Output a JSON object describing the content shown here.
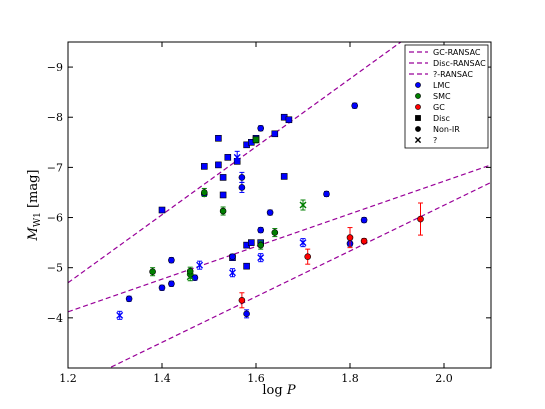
{
  "chart_data": {
    "type": "scatter",
    "xlabel_main": "log",
    "xlabel_var": "P",
    "ylabel_main": "M",
    "ylabel_sub": "W1",
    "ylabel_unit": "[mag]",
    "xlim": [
      1.2,
      2.1
    ],
    "ylim": [
      -3,
      -9.5
    ],
    "y_inverted": true,
    "grid": false,
    "legend_position": "top-right",
    "xticks": [
      {
        "value": 1.2,
        "label": "1.2"
      },
      {
        "value": 1.4,
        "label": "1.4"
      },
      {
        "value": 1.6,
        "label": "1.6"
      },
      {
        "value": 1.8,
        "label": "1.8"
      },
      {
        "value": 2.0,
        "label": "2.0"
      }
    ],
    "yticks": [
      {
        "value": -4,
        "label": "−4"
      },
      {
        "value": -5,
        "label": "−5"
      },
      {
        "value": -6,
        "label": "−6"
      },
      {
        "value": -7,
        "label": "−7"
      },
      {
        "value": -8,
        "label": "−8"
      },
      {
        "value": -9,
        "label": "−9"
      }
    ],
    "fits": [
      {
        "name": "GC-RANSAC",
        "x": [
          1.2,
          2.1
        ],
        "y": [
          -4.7,
          -10.8
        ]
      },
      {
        "name": "Disc-RANSAC",
        "x": [
          1.2,
          2.1
        ],
        "y": [
          -4.12,
          -7.05
        ]
      },
      {
        "name": "?-RANSAC",
        "x": [
          1.2,
          2.1
        ],
        "y": [
          -2.6,
          -6.7
        ]
      }
    ],
    "legend": [
      {
        "label": "GC-RANSAC",
        "kind": "line"
      },
      {
        "label": "Disc-RANSAC",
        "kind": "line"
      },
      {
        "label": "?-RANSAC",
        "kind": "line"
      },
      {
        "label": "LMC",
        "kind": "dot",
        "color": "#0000ff"
      },
      {
        "label": "SMC",
        "kind": "dot",
        "color": "#007f00"
      },
      {
        "label": "GC",
        "kind": "dot",
        "color": "#ff0000"
      },
      {
        "label": "Disc",
        "kind": "square",
        "color": "#000000"
      },
      {
        "label": "Non-IR",
        "kind": "dot",
        "color": "#000000"
      },
      {
        "label": "?",
        "kind": "cross",
        "color": "#000000"
      }
    ],
    "colors": {
      "LMC": "#0000ff",
      "SMC": "#007f00",
      "GC": "#ff0000",
      "fit_line": "#990099"
    },
    "series": [
      {
        "name": "LMC",
        "marker": "square",
        "points": [
          {
            "x": 1.4,
            "y": -6.15,
            "e": 0.05
          },
          {
            "x": 1.49,
            "y": -7.02,
            "e": 0.05
          },
          {
            "x": 1.52,
            "y": -7.58,
            "e": 0.05
          },
          {
            "x": 1.52,
            "y": -7.05,
            "e": 0.05
          },
          {
            "x": 1.54,
            "y": -7.2,
            "e": 0.05
          },
          {
            "x": 1.53,
            "y": -6.8,
            "e": 0.05
          },
          {
            "x": 1.53,
            "y": -6.45,
            "e": 0.05
          },
          {
            "x": 1.56,
            "y": -7.12,
            "e": 0.05
          },
          {
            "x": 1.58,
            "y": -7.45,
            "e": 0.05
          },
          {
            "x": 1.59,
            "y": -7.5,
            "e": 0.05
          },
          {
            "x": 1.6,
            "y": -7.58,
            "e": 0.05
          },
          {
            "x": 1.64,
            "y": -7.67,
            "e": 0.05
          },
          {
            "x": 1.66,
            "y": -8.0,
            "e": 0.05
          },
          {
            "x": 1.67,
            "y": -7.95,
            "e": 0.05
          },
          {
            "x": 1.66,
            "y": -6.82,
            "e": 0.05
          },
          {
            "x": 1.58,
            "y": -5.45,
            "e": 0.05
          },
          {
            "x": 1.59,
            "y": -5.5,
            "e": 0.05
          },
          {
            "x": 1.58,
            "y": -5.03,
            "e": 0.05
          },
          {
            "x": 1.55,
            "y": -5.2,
            "e": 0.05
          },
          {
            "x": 1.61,
            "y": -5.5,
            "e": 0.05
          }
        ]
      },
      {
        "name": "LMC",
        "marker": "circle",
        "points": [
          {
            "x": 1.33,
            "y": -4.38,
            "e": 0.05
          },
          {
            "x": 1.4,
            "y": -4.6,
            "e": 0.05
          },
          {
            "x": 1.42,
            "y": -4.68,
            "e": 0.05
          },
          {
            "x": 1.42,
            "y": -5.15,
            "e": 0.05
          },
          {
            "x": 1.47,
            "y": -4.8,
            "e": 0.05
          },
          {
            "x": 1.49,
            "y": -6.47,
            "e": 0.05
          },
          {
            "x": 1.55,
            "y": -5.22,
            "e": 0.05
          },
          {
            "x": 1.57,
            "y": -6.6,
            "e": 0.1
          },
          {
            "x": 1.57,
            "y": -6.8,
            "e": 0.1
          },
          {
            "x": 1.61,
            "y": -7.78,
            "e": 0.05
          },
          {
            "x": 1.61,
            "y": -5.75,
            "e": 0.05
          },
          {
            "x": 1.63,
            "y": -6.1,
            "e": 0.05
          },
          {
            "x": 1.75,
            "y": -6.47,
            "e": 0.05
          },
          {
            "x": 1.81,
            "y": -8.23,
            "e": 0.05
          },
          {
            "x": 1.83,
            "y": -5.95,
            "e": 0.05
          },
          {
            "x": 1.8,
            "y": -5.48,
            "e": 0.05
          },
          {
            "x": 1.58,
            "y": -4.08,
            "e": 0.08
          }
        ]
      },
      {
        "name": "LMC",
        "marker": "cross",
        "points": [
          {
            "x": 1.31,
            "y": -4.05,
            "e": 0.08
          },
          {
            "x": 1.48,
            "y": -5.05,
            "e": 0.08
          },
          {
            "x": 1.55,
            "y": -4.9,
            "e": 0.08
          },
          {
            "x": 1.56,
            "y": -7.2,
            "e": 0.12
          },
          {
            "x": 1.61,
            "y": -5.2,
            "e": 0.08
          },
          {
            "x": 1.7,
            "y": -5.5,
            "e": 0.08
          }
        ]
      },
      {
        "name": "SMC",
        "marker": "circle",
        "points": [
          {
            "x": 1.38,
            "y": -4.92,
            "e": 0.08
          },
          {
            "x": 1.46,
            "y": -4.87,
            "e": 0.08
          },
          {
            "x": 1.46,
            "y": -4.93,
            "e": 0.08
          },
          {
            "x": 1.49,
            "y": -6.5,
            "e": 0.08
          },
          {
            "x": 1.53,
            "y": -6.13,
            "e": 0.08
          },
          {
            "x": 1.61,
            "y": -5.45,
            "e": 0.08
          },
          {
            "x": 1.64,
            "y": -5.7,
            "e": 0.08
          }
        ]
      },
      {
        "name": "SMC",
        "marker": "square",
        "points": [
          {
            "x": 1.6,
            "y": -7.55,
            "e": 0.06
          }
        ]
      },
      {
        "name": "SMC",
        "marker": "cross",
        "points": [
          {
            "x": 1.46,
            "y": -4.82,
            "e": 0.08
          },
          {
            "x": 1.7,
            "y": -6.25,
            "e": 0.1
          }
        ]
      },
      {
        "name": "GC",
        "marker": "circle",
        "points": [
          {
            "x": 1.57,
            "y": -4.35,
            "e": 0.15
          },
          {
            "x": 1.71,
            "y": -5.22,
            "e": 0.15
          },
          {
            "x": 1.8,
            "y": -5.6,
            "e": 0.2
          },
          {
            "x": 1.83,
            "y": -5.53,
            "e": 0.05
          },
          {
            "x": 1.95,
            "y": -5.97,
            "e": 0.32
          }
        ]
      }
    ]
  }
}
